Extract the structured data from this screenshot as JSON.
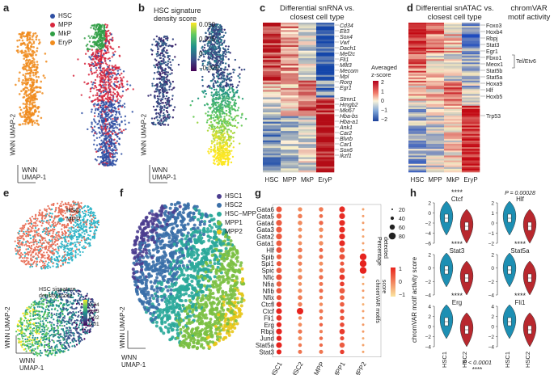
{
  "panels": {
    "a": {
      "label": "a",
      "legend": [
        {
          "name": "HSC",
          "color": "#2e4fa3"
        },
        {
          "name": "MPP",
          "color": "#d7263d"
        },
        {
          "name": "MkP",
          "color": "#2f9e44"
        },
        {
          "name": "EryP",
          "color": "#f08c1e"
        }
      ],
      "axis_x": "UMAP-1",
      "axis_y": "UMAP-2",
      "axis_prefix": "WNN"
    },
    "b": {
      "label": "b",
      "title": "HSC signature\ndensity score",
      "ticks": [
        "0.050",
        "0.025",
        "0",
        "−0.025"
      ],
      "axis_x": "UMAP-1",
      "axis_y": "UMAP-2",
      "axis_prefix": "WNN"
    },
    "c": {
      "label": "c",
      "title": "Differential snRNA vs.\nclosest cell type",
      "columns": [
        "HSC",
        "MPP",
        "MkP",
        "EryP"
      ],
      "genes": [
        "Cd34",
        "Elt3",
        "Sox4",
        "Vwf",
        "Dach1",
        "Mef2c",
        "Fli1",
        "Mllt3",
        "Mecom",
        "Mpl",
        "Rorg",
        "Egr1",
        "Stmn1",
        "Hmgb2",
        "Mki67",
        "Hba-bs",
        "Hba-a1",
        "Ank1",
        "Car2",
        "Blvrb",
        "Car1",
        "Sox6",
        "Ikzf1"
      ],
      "colorbar_title": "Averaged\nz-score",
      "colorbar_ticks": [
        "2",
        "1",
        "0",
        "−1",
        "−2"
      ]
    },
    "d": {
      "label": "d",
      "title": "Differential snATAC vs.\nclosest cell type",
      "title2": "chromVAR\nmotif activity",
      "columns": [
        "HSC",
        "MPP",
        "MkP",
        "EryP"
      ],
      "motifs": [
        "Foxo3",
        "Hoxb4",
        "Rbpj",
        "Stat3",
        "Egr1",
        "Fbxo1",
        "Meox1",
        "Stat5b",
        "Stat5a",
        "Hoxa9",
        "Hlf",
        "Hoxb5"
      ],
      "bracket_label": "Tel/Etv6",
      "single_label": "Trp53"
    },
    "e": {
      "label": "e",
      "legend": [
        {
          "name": "HSC",
          "color": "#e8735c"
        },
        {
          "name": "MPP",
          "color": "#2fb5c8"
        }
      ],
      "title": "HSC signature\ndensity score",
      "ticks": [
        "0.04",
        "0.03",
        "0.02",
        "0.01"
      ],
      "axis_x": "UMAP-1",
      "axis_y": "UMAP-2",
      "axis_prefix": "WNN"
    },
    "f": {
      "label": "f",
      "legend": [
        {
          "name": "HSC1",
          "color": "#4b3d8f"
        },
        {
          "name": "HSC2",
          "color": "#3a6fa8"
        },
        {
          "name": "HSC−MPP",
          "color": "#2aa99a"
        },
        {
          "name": "MPP1",
          "color": "#7bc043"
        },
        {
          "name": "MPP2",
          "color": "#e8c71a"
        }
      ],
      "axis_x": "UMAP-1",
      "axis_y": "UMAP-2",
      "axis_prefix": "WNN"
    },
    "g": {
      "label": "g",
      "rows": [
        "Gata6",
        "Gata5",
        "Gata4",
        "Gata3",
        "Gata2",
        "Gata1",
        "Hlf",
        "Spib",
        "Spi1",
        "Spic",
        "Nfic",
        "Nfia",
        "Nfib",
        "Nfix",
        "Ctcfl",
        "Ctcf",
        "Fli1",
        "Erg",
        "Rbpj",
        "Jund",
        "Stat5a",
        "Stat3"
      ],
      "columns": [
        "HSC1",
        "HSC2",
        "HSC−MPP",
        "MPP1",
        "MPP2"
      ],
      "size_title": "Percentage\ndetected",
      "size_ticks": [
        "20",
        "40",
        "60",
        "80"
      ],
      "color_title": "chromVAR motifs\nscore",
      "color_ticks": [
        "1",
        "0",
        "−1"
      ]
    },
    "h": {
      "label": "h",
      "ylabel": "chromVAR motif activity score",
      "violins": [
        {
          "title": "Ctcf",
          "sig": "****",
          "ticks": [
            "2",
            "0",
            "−2",
            "−4",
            "−6"
          ]
        },
        {
          "title": "Hlf",
          "sig": "P = 0.00028",
          "ticks": [
            "2",
            "1",
            "0",
            "−1",
            "−2"
          ]
        },
        {
          "title": "Stat3",
          "sig": "****",
          "ticks": [
            "2",
            "0",
            "−2",
            "−4"
          ]
        },
        {
          "title": "Stat5a",
          "sig": "****",
          "ticks": [
            "2",
            "0",
            "−2",
            "−4"
          ]
        },
        {
          "title": "Erg",
          "sig": "****",
          "ticks": [
            "4",
            "2",
            "0",
            "−2",
            "−4"
          ]
        },
        {
          "title": "Fli1",
          "sig": "****",
          "ticks": [
            "4",
            "2",
            "0",
            "−2",
            "−4"
          ]
        }
      ],
      "xcats": [
        "HSC1",
        "HSC2"
      ],
      "footnote": "P < 0.0001",
      "footnote2": "****",
      "colors": {
        "HSC1": "#1d8fb3",
        "HSC2": "#b8282e"
      }
    }
  }
}
